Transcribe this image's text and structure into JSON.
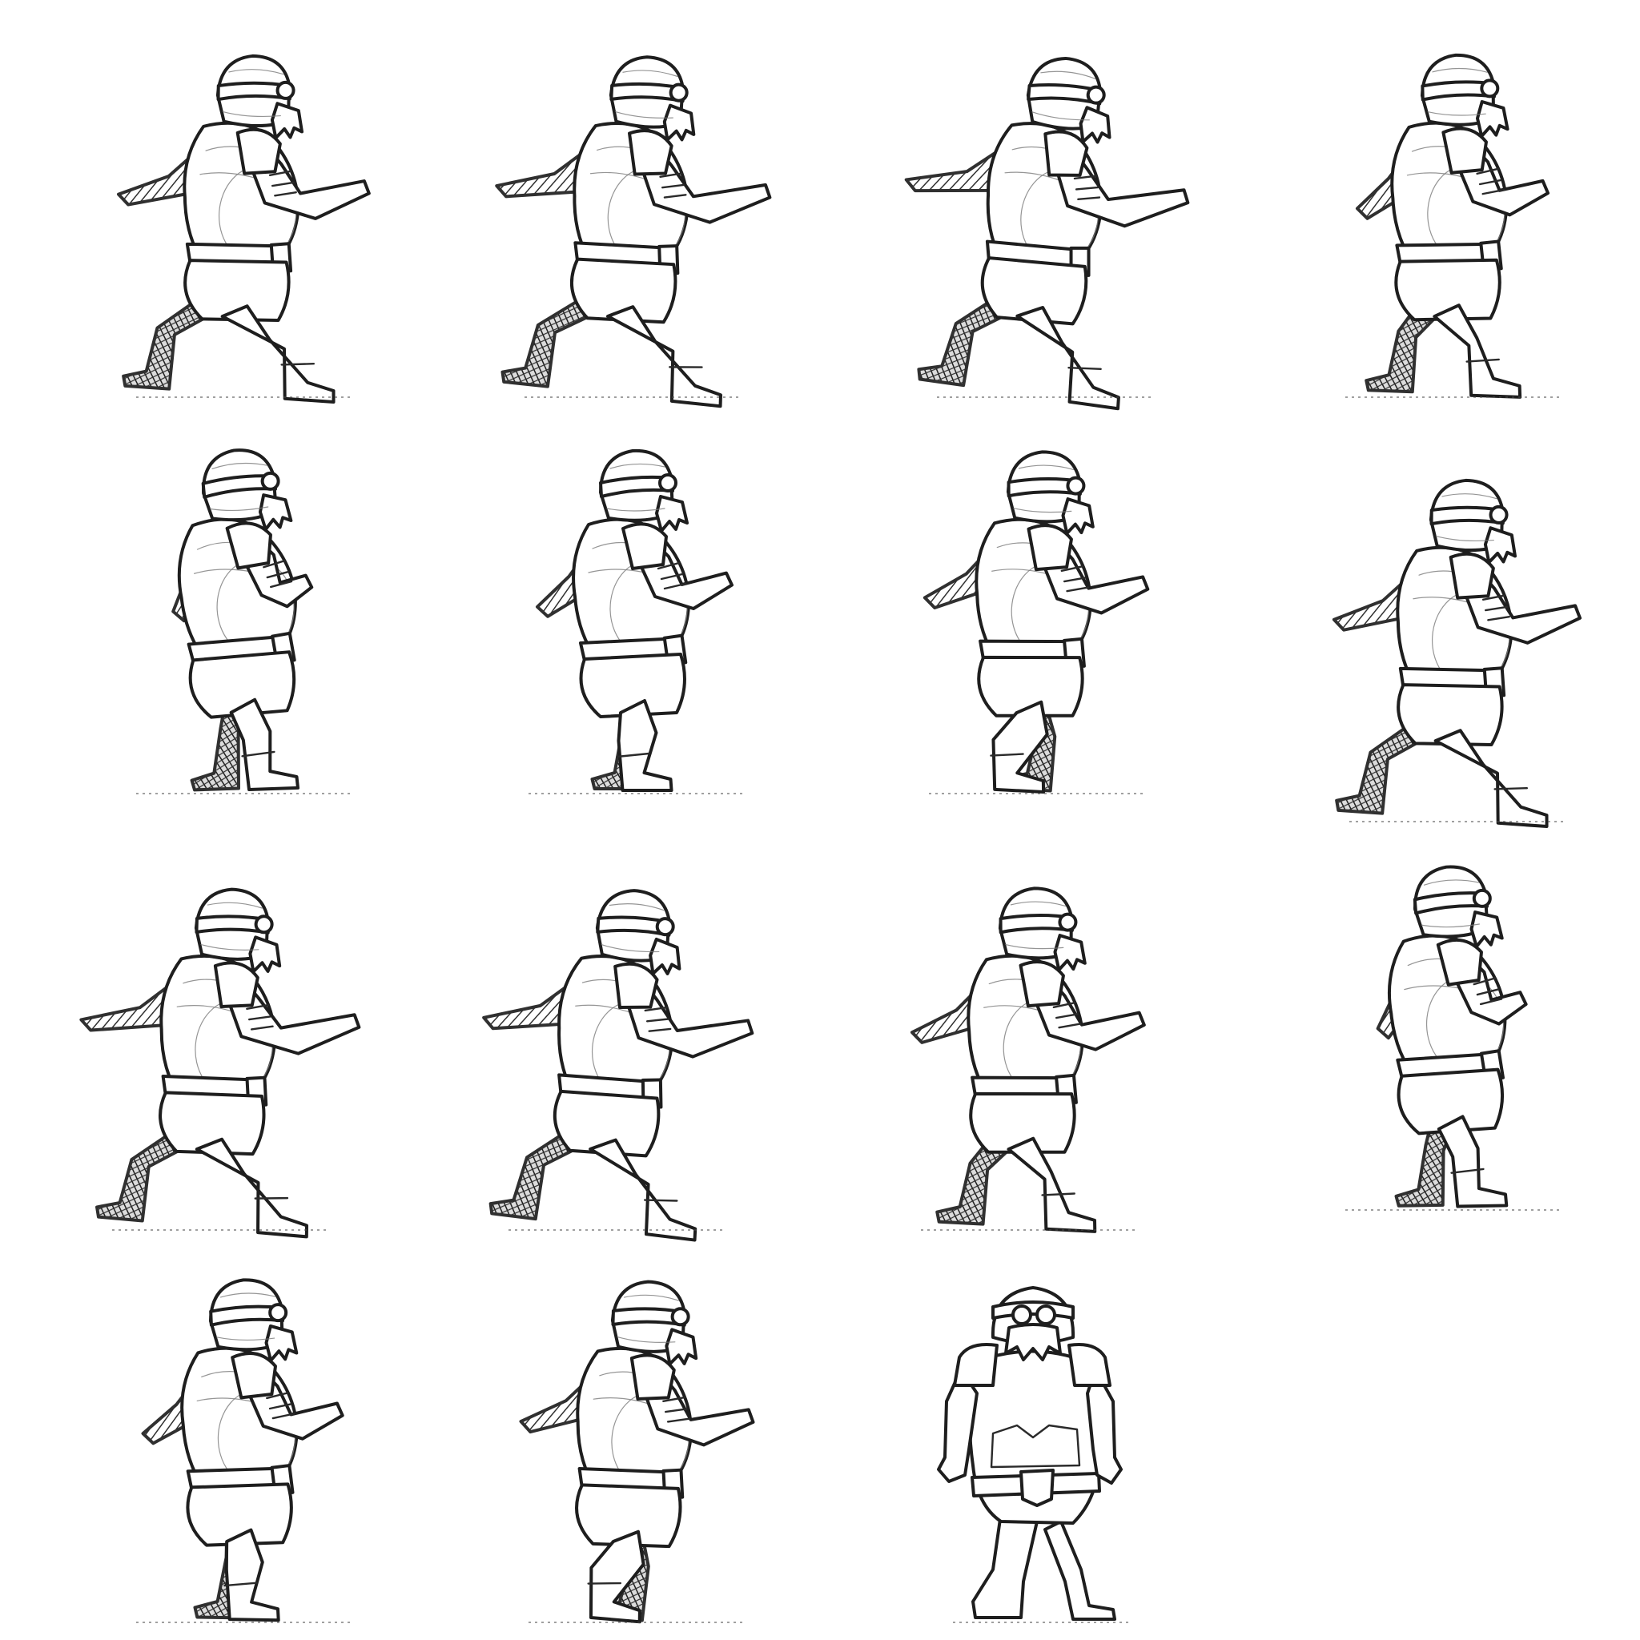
{
  "sheet": {
    "background": "#ffffff",
    "ink_color": "#1e1e1e",
    "hatch_color": "#303030",
    "grid": {
      "rows": 4,
      "columns": 4,
      "frames_drawn": 15
    }
  },
  "frames": [
    {
      "id": 1,
      "view": "side-walk",
      "facing": "right"
    },
    {
      "id": 2,
      "view": "side-walk",
      "facing": "right"
    },
    {
      "id": 3,
      "view": "side-walk",
      "facing": "right"
    },
    {
      "id": 4,
      "view": "side-walk",
      "facing": "right"
    },
    {
      "id": 5,
      "view": "side-walk",
      "facing": "right"
    },
    {
      "id": 6,
      "view": "side-walk",
      "facing": "right"
    },
    {
      "id": 7,
      "view": "side-walk",
      "facing": "right"
    },
    {
      "id": 8,
      "view": "side-walk",
      "facing": "right"
    },
    {
      "id": 9,
      "view": "side-walk",
      "facing": "right"
    },
    {
      "id": 10,
      "view": "side-walk",
      "facing": "right"
    },
    {
      "id": 11,
      "view": "side-walk",
      "facing": "right"
    },
    {
      "id": 12,
      "view": "side-walk",
      "facing": "right"
    },
    {
      "id": 13,
      "view": "side-walk",
      "facing": "right"
    },
    {
      "id": 14,
      "view": "side-walk",
      "facing": "right"
    },
    {
      "id": 15,
      "view": "front-three-quarter",
      "facing": "front"
    }
  ]
}
